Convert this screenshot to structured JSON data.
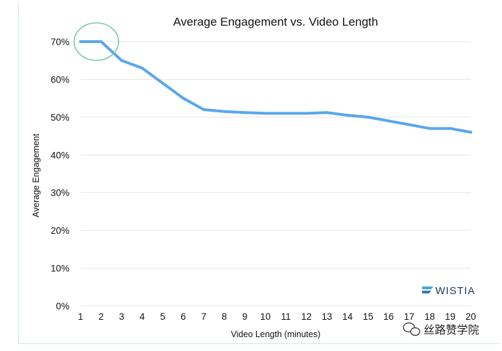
{
  "chart_data": {
    "type": "line",
    "title": "Average Engagement vs. Video Length",
    "xlabel": "Video Length (minutes)",
    "ylabel": "Average Engagement",
    "x": [
      1,
      2,
      3,
      4,
      5,
      6,
      7,
      8,
      9,
      10,
      11,
      12,
      13,
      14,
      15,
      16,
      17,
      18,
      19,
      20
    ],
    "series": [
      {
        "values": [
          70,
          70,
          65,
          63,
          59,
          55,
          52,
          51.5,
          51.2,
          51,
          51,
          51,
          51.2,
          50.5,
          50,
          49,
          48,
          47,
          47,
          46
        ]
      }
    ],
    "y_ticks": [
      "0%",
      "10%",
      "20%",
      "30%",
      "40%",
      "50%",
      "60%",
      "70%"
    ],
    "x_ticks": [
      "1",
      "2",
      "3",
      "4",
      "5",
      "6",
      "7",
      "8",
      "9",
      "10",
      "11",
      "12",
      "13",
      "14",
      "15",
      "16",
      "17",
      "18",
      "19",
      "20"
    ],
    "ylim": [
      0,
      70
    ],
    "xlim": [
      1,
      20
    ],
    "grid": true,
    "line_color": "#5aa6ec",
    "highlight": {
      "x_range": [
        1,
        2
      ],
      "color": "#7cc9a6"
    }
  },
  "brand": {
    "name": "WISTIA",
    "color": "#1f3a5a"
  },
  "watermark": {
    "text": "丝路赞学院"
  }
}
